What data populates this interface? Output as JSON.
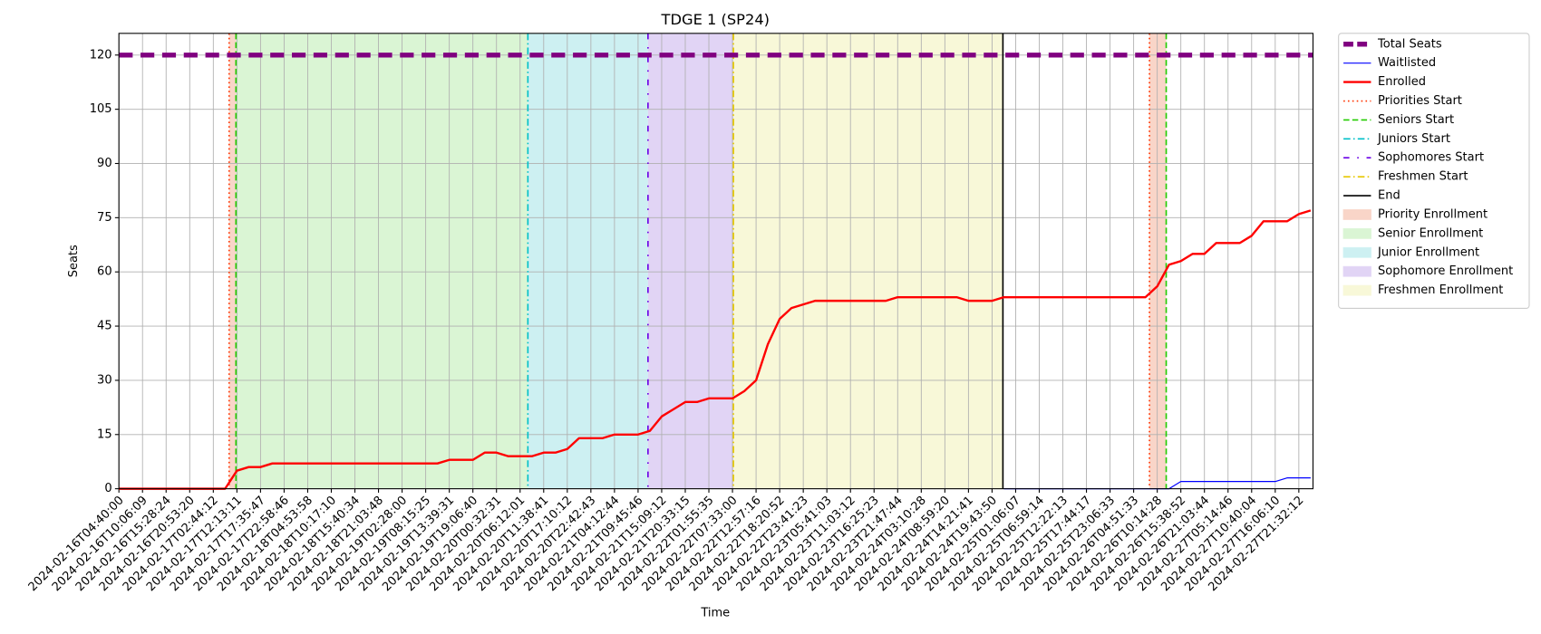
{
  "chart_data": {
    "type": "line",
    "title": "TDGE 1 (SP24)",
    "xlabel": "Time",
    "ylabel": "Seats",
    "x": [
      0,
      0.5,
      1,
      1.5,
      2,
      2.5,
      3,
      3.5,
      4,
      4.5,
      5,
      5.5,
      6,
      6.5,
      7,
      7.5,
      8,
      8.5,
      9,
      9.5,
      10,
      10.5,
      11,
      11.5,
      12,
      12.5,
      13,
      13.5,
      14,
      14.5,
      15,
      15.5,
      16,
      16.5,
      17,
      17.5,
      18,
      18.5,
      19,
      19.5,
      20,
      20.5,
      21,
      21.5,
      22,
      22.5,
      23,
      23.5,
      24,
      24.5,
      25,
      25.5,
      26,
      26.5,
      27,
      27.5,
      28,
      28.5,
      29,
      29.5,
      30,
      30.5,
      31,
      31.5,
      32,
      32.5,
      33,
      33.5,
      34,
      34.5,
      35,
      35.5,
      36,
      36.5,
      37,
      37.5,
      38,
      38.5,
      39,
      39.5,
      40,
      40.5,
      41,
      41.5,
      42,
      42.5,
      43,
      43.5,
      44,
      44.5,
      45,
      45.5,
      46,
      46.5,
      47,
      47.5,
      48,
      48.5,
      49,
      49.5,
      50,
      50.5
    ],
    "series": [
      {
        "name": "Waitlisted",
        "color": "#0000ff",
        "width": 1,
        "values": [
          null,
          null,
          null,
          null,
          null,
          null,
          null,
          null,
          null,
          null,
          null,
          null,
          null,
          null,
          null,
          null,
          null,
          null,
          null,
          null,
          null,
          null,
          null,
          null,
          null,
          null,
          null,
          null,
          null,
          null,
          null,
          null,
          null,
          null,
          null,
          null,
          null,
          null,
          null,
          null,
          null,
          null,
          null,
          null,
          null,
          null,
          null,
          null,
          null,
          null,
          null,
          null,
          null,
          null,
          null,
          null,
          null,
          null,
          null,
          null,
          null,
          null,
          null,
          null,
          null,
          null,
          null,
          null,
          null,
          null,
          null,
          null,
          null,
          null,
          null,
          0,
          0,
          0,
          0,
          0,
          0,
          0,
          0,
          0,
          0,
          0,
          0,
          0,
          0,
          0,
          2,
          2,
          2,
          2,
          2,
          2,
          2,
          2,
          2,
          3,
          3,
          3
        ]
      },
      {
        "name": "Enrolled",
        "color": "#ff0000",
        "width": 2,
        "values": [
          0,
          0,
          0,
          0,
          0,
          0,
          0,
          0,
          0,
          0,
          5,
          6,
          6,
          7,
          7,
          7,
          7,
          7,
          7,
          7,
          7,
          7,
          7,
          7,
          7,
          7,
          7,
          7,
          8,
          8,
          8,
          10,
          10,
          9,
          9,
          9,
          10,
          10,
          11,
          14,
          14,
          14,
          15,
          15,
          15,
          16,
          20,
          22,
          24,
          24,
          25,
          25,
          25,
          27,
          30,
          40,
          47,
          50,
          51,
          52,
          52,
          52,
          52,
          52,
          52,
          52,
          53,
          53,
          53,
          53,
          53,
          53,
          52,
          52,
          52,
          53,
          53,
          53,
          53,
          53,
          53,
          53,
          53,
          53,
          53,
          53,
          53,
          53,
          56,
          62,
          63,
          65,
          65,
          68,
          68,
          68,
          70,
          74,
          74,
          74,
          76,
          77
        ]
      }
    ],
    "hlines": [
      {
        "name": "Total Seats",
        "color": "#800080",
        "y": 120
      }
    ],
    "vlines": [
      {
        "name": "Priorities Start",
        "color": "#ff3300",
        "style": "dotted",
        "x": [
          4.67,
          43.67
        ]
      },
      {
        "name": "Seniors Start",
        "color": "#22cc00",
        "style": "dashed",
        "x": [
          4.96,
          44.38
        ]
      },
      {
        "name": "Juniors Start",
        "color": "#00c0c8",
        "style": "dashdot",
        "x": [
          17.33
        ]
      },
      {
        "name": "Sophomores Start",
        "color": "#6a00e6",
        "style": "loosedashdot",
        "x": [
          22.42
        ]
      },
      {
        "name": "Freshmen Start",
        "color": "#e6c800",
        "style": "dashdot",
        "x": [
          26.04
        ]
      },
      {
        "name": "End",
        "color": "#000000",
        "style": "solid",
        "x": [
          37.46
        ]
      }
    ],
    "spans": [
      {
        "name": "Priority Enrollment",
        "color": "#f9d5c8",
        "ranges": [
          [
            4.67,
            4.96
          ],
          [
            43.67,
            44.38
          ]
        ]
      },
      {
        "name": "Senior Enrollment",
        "color": "#daf5d4",
        "ranges": [
          [
            4.96,
            17.33
          ]
        ]
      },
      {
        "name": "Junior Enrollment",
        "color": "#cdf0f2",
        "ranges": [
          [
            17.33,
            22.42
          ]
        ]
      },
      {
        "name": "Sophomore Enrollment",
        "color": "#e1d4f5",
        "ranges": [
          [
            22.42,
            26.04
          ]
        ]
      },
      {
        "name": "Freshmen Enrollment",
        "color": "#f8f8d8",
        "ranges": [
          [
            26.04,
            37.46
          ]
        ]
      }
    ],
    "xlim": [
      0,
      50.6
    ],
    "ylim": [
      0,
      126
    ],
    "yticks": [
      0,
      15,
      30,
      45,
      60,
      75,
      90,
      105,
      120
    ],
    "grid": true,
    "xticks": [
      {
        "value": 0,
        "label": "2024-02-16T04:40:00"
      },
      {
        "value": 1,
        "label": "2024-02-16T10:06:09"
      },
      {
        "value": 2,
        "label": "2024-02-16T15:28:24"
      },
      {
        "value": 3,
        "label": "2024-02-16T20:53:20"
      },
      {
        "value": 4,
        "label": "2024-02-17T02:44:12"
      },
      {
        "value": 5,
        "label": "2024-02-17T12:13:11"
      },
      {
        "value": 6,
        "label": "2024-02-17T17:35:47"
      },
      {
        "value": 7,
        "label": "2024-02-17T22:58:46"
      },
      {
        "value": 8,
        "label": "2024-02-18T04:53:58"
      },
      {
        "value": 9,
        "label": "2024-02-18T10:17:10"
      },
      {
        "value": 10,
        "label": "2024-02-18T15:40:34"
      },
      {
        "value": 11,
        "label": "2024-02-18T21:03:48"
      },
      {
        "value": 12,
        "label": "2024-02-19T02:28:00"
      },
      {
        "value": 13,
        "label": "2024-02-19T08:15:25"
      },
      {
        "value": 14,
        "label": "2024-02-19T13:39:31"
      },
      {
        "value": 15,
        "label": "2024-02-19T19:06:40"
      },
      {
        "value": 16,
        "label": "2024-02-20T00:32:31"
      },
      {
        "value": 17,
        "label": "2024-02-20T06:12:01"
      },
      {
        "value": 18,
        "label": "2024-02-20T11:38:41"
      },
      {
        "value": 19,
        "label": "2024-02-20T17:10:12"
      },
      {
        "value": 20,
        "label": "2024-02-20T22:42:43"
      },
      {
        "value": 21,
        "label": "2024-02-21T04:12:44"
      },
      {
        "value": 22,
        "label": "2024-02-21T09:45:46"
      },
      {
        "value": 23,
        "label": "2024-02-21T15:09:12"
      },
      {
        "value": 24,
        "label": "2024-02-21T20:33:15"
      },
      {
        "value": 25,
        "label": "2024-02-22T01:55:35"
      },
      {
        "value": 26,
        "label": "2024-02-22T07:33:00"
      },
      {
        "value": 27,
        "label": "2024-02-22T12:57:16"
      },
      {
        "value": 28,
        "label": "2024-02-22T18:20:52"
      },
      {
        "value": 29,
        "label": "2024-02-22T23:41:23"
      },
      {
        "value": 30,
        "label": "2024-02-23T05:41:03"
      },
      {
        "value": 31,
        "label": "2024-02-23T11:03:12"
      },
      {
        "value": 32,
        "label": "2024-02-23T16:25:23"
      },
      {
        "value": 33,
        "label": "2024-02-23T21:47:44"
      },
      {
        "value": 34,
        "label": "2024-02-24T03:10:28"
      },
      {
        "value": 35,
        "label": "2024-02-24T08:59:20"
      },
      {
        "value": 36,
        "label": "2024-02-24T14:21:41"
      },
      {
        "value": 37,
        "label": "2024-02-24T19:43:50"
      },
      {
        "value": 38,
        "label": "2024-02-25T01:06:07"
      },
      {
        "value": 39,
        "label": "2024-02-25T06:59:14"
      },
      {
        "value": 40,
        "label": "2024-02-25T12:22:13"
      },
      {
        "value": 41,
        "label": "2024-02-25T17:44:17"
      },
      {
        "value": 42,
        "label": "2024-02-25T23:06:33"
      },
      {
        "value": 43,
        "label": "2024-02-26T04:51:33"
      },
      {
        "value": 44,
        "label": "2024-02-26T10:14:28"
      },
      {
        "value": 45,
        "label": "2024-02-26T15:38:52"
      },
      {
        "value": 46,
        "label": "2024-02-26T21:03:44"
      },
      {
        "value": 47,
        "label": "2024-02-27T05:14:46"
      },
      {
        "value": 48,
        "label": "2024-02-27T10:40:04"
      },
      {
        "value": 49,
        "label": "2024-02-27T16:06:10"
      },
      {
        "value": 50,
        "label": "2024-02-27T21:32:12"
      }
    ]
  }
}
